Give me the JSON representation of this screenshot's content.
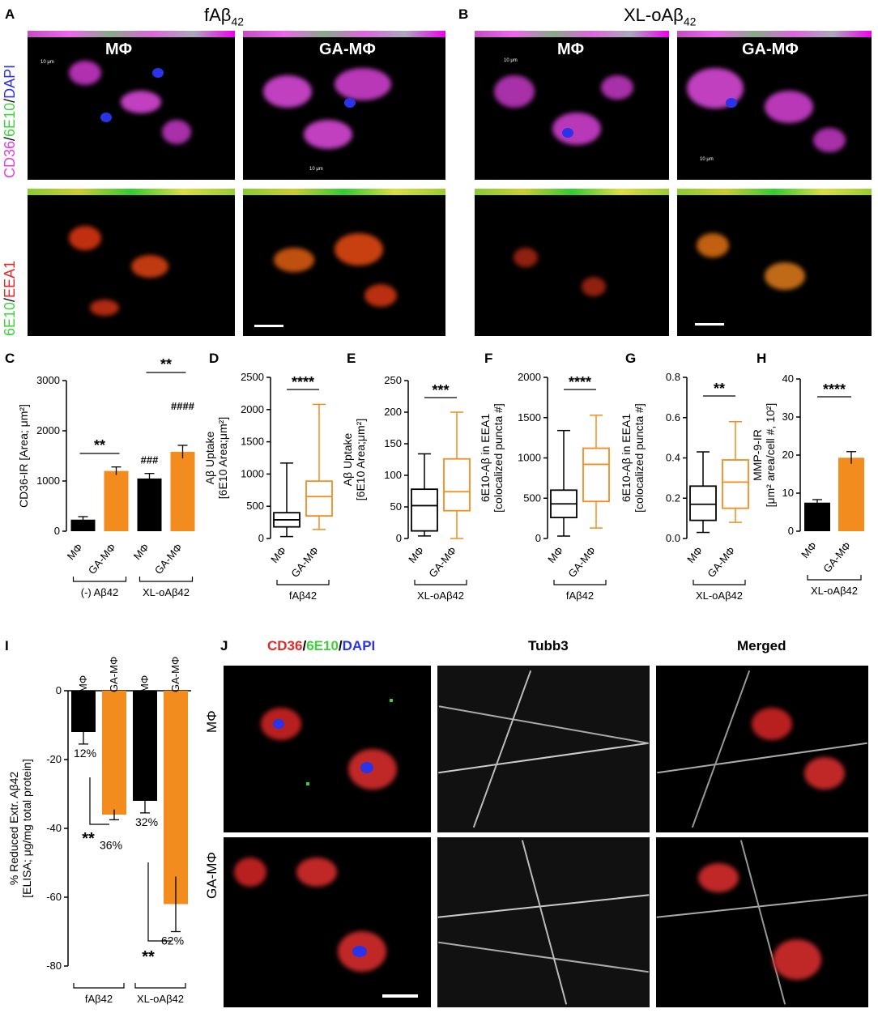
{
  "panel_letters": {
    "A": "A",
    "B": "B",
    "C": "C",
    "D": "D",
    "E": "E",
    "F": "F",
    "G": "G",
    "H": "H",
    "I": "I",
    "J": "J"
  },
  "panelA": {
    "title": "fAβ42",
    "row_label_top": [
      "CD36",
      "/",
      "6E10",
      "/",
      "DAPI"
    ],
    "row_label_bottom": [
      "6E10",
      "/",
      "EEA1"
    ],
    "col_labels": [
      "MΦ",
      "GA-MΦ"
    ],
    "scale_text": [
      "10 μm",
      "10 μm"
    ]
  },
  "panelB": {
    "title": "XL-oAβ42",
    "col_labels": [
      "MΦ",
      "GA-MΦ"
    ],
    "scale_text": [
      "10 μm",
      "10 μm"
    ]
  },
  "colors": {
    "orange": "#F28C1E",
    "black": "#000000",
    "magenta": "#E040E0",
    "green": "#3ED13E",
    "red": "#E52828",
    "blue": "#2B33E8"
  },
  "chart_data": [
    {
      "panel": "C",
      "type": "bar",
      "ylabel": "CD36-IR [Area; μm²]",
      "ylim": [
        0,
        3000
      ],
      "yticks": [
        0,
        1000,
        2000,
        3000
      ],
      "categories": [
        "MΦ",
        "GA-MΦ",
        "MΦ",
        "GA-MΦ"
      ],
      "groups": [
        {
          "label": "(-) Aβ42",
          "span": [
            0,
            1
          ]
        },
        {
          "label": "XL-oAβ42",
          "span": [
            2,
            3
          ]
        }
      ],
      "values": [
        230,
        1200,
        1050,
        1580
      ],
      "errors": [
        60,
        80,
        100,
        130
      ],
      "colors": [
        "#000000",
        "#F28C1E",
        "#000000",
        "#F28C1E"
      ],
      "annotations": [
        {
          "text": "**",
          "between": [
            0,
            1
          ]
        },
        {
          "text": "**",
          "between": [
            2,
            3
          ]
        },
        {
          "text": "###",
          "bar": 2
        },
        {
          "text": "####",
          "bar": 3
        }
      ]
    },
    {
      "panel": "D",
      "type": "box",
      "ylabel_lines": [
        "Aβ Uptake",
        "[6E10 Area;μm²]"
      ],
      "ylim": [
        0,
        2500
      ],
      "yticks": [
        0,
        500,
        1000,
        1500,
        2000,
        2500
      ],
      "categories": [
        "MΦ",
        "GA-MΦ"
      ],
      "group_label": "fAβ42",
      "boxes": [
        {
          "min": 30,
          "q1": 180,
          "median": 290,
          "q3": 400,
          "max": 1170,
          "color": "#000000"
        },
        {
          "min": 140,
          "q1": 350,
          "median": 650,
          "q3": 890,
          "max": 2080,
          "color": "#F28C1E"
        }
      ],
      "significance": "****"
    },
    {
      "panel": "E",
      "type": "box",
      "ylabel_lines": [
        "Aβ Uptake",
        "[6E10 Area;μm²]"
      ],
      "ylim": [
        0,
        250
      ],
      "yticks": [
        0,
        50,
        100,
        150,
        200,
        250
      ],
      "categories": [
        "MΦ",
        "GA-MΦ"
      ],
      "group_label": "XL-oAβ42",
      "boxes": [
        {
          "min": 4,
          "q1": 12,
          "median": 52,
          "q3": 78,
          "max": 134,
          "color": "#000000"
        },
        {
          "min": 0,
          "q1": 44,
          "median": 74,
          "q3": 126,
          "max": 200,
          "color": "#F28C1E"
        }
      ],
      "significance": "***"
    },
    {
      "panel": "F",
      "type": "box",
      "ylabel_lines": [
        "6E10-Aβ in EEA1",
        "[colocalized puncta #]"
      ],
      "ylim": [
        0,
        2000
      ],
      "yticks": [
        0,
        500,
        1000,
        1500,
        2000
      ],
      "categories": [
        "MΦ",
        "GA-MΦ"
      ],
      "group_label": "fAβ42",
      "boxes": [
        {
          "min": 30,
          "q1": 260,
          "median": 430,
          "q3": 600,
          "max": 1340,
          "color": "#000000"
        },
        {
          "min": 130,
          "q1": 460,
          "median": 920,
          "q3": 1120,
          "max": 1530,
          "color": "#F28C1E"
        }
      ],
      "significance": "****"
    },
    {
      "panel": "G",
      "type": "box",
      "ylabel_lines": [
        "6E10-Aβ in EEA1",
        "[colocalized puncta #]"
      ],
      "ylim": [
        0,
        0.8
      ],
      "yticks": [
        0.0,
        0.2,
        0.4,
        0.6,
        0.8
      ],
      "categories": [
        "MΦ",
        "GA-MΦ"
      ],
      "group_label": "XL-oAβ42",
      "boxes": [
        {
          "min": 0.03,
          "q1": 0.09,
          "median": 0.17,
          "q3": 0.26,
          "max": 0.43,
          "color": "#000000"
        },
        {
          "min": 0.08,
          "q1": 0.15,
          "median": 0.28,
          "q3": 0.39,
          "max": 0.58,
          "color": "#F28C1E"
        }
      ],
      "significance": "**"
    },
    {
      "panel": "H",
      "type": "bar",
      "ylabel_lines": [
        "MMP-9-IR",
        "[μm² area/cell #, 10²]"
      ],
      "ylim": [
        0,
        40
      ],
      "yticks": [
        0,
        10,
        20,
        30,
        40
      ],
      "categories": [
        "MΦ",
        "GA-MΦ"
      ],
      "group_label": "XL-oAβ42",
      "values": [
        7.5,
        19.3
      ],
      "errors": [
        0.8,
        1.6
      ],
      "colors": [
        "#000000",
        "#F28C1E"
      ],
      "significance": "****"
    },
    {
      "panel": "I",
      "type": "bar",
      "ylabel_lines": [
        "% Reduced Extr. Aβ42",
        "[ELISA; μg/mg total protein]"
      ],
      "ylim": [
        -80,
        0
      ],
      "yticks": [
        0,
        -20,
        -40,
        -60,
        -80
      ],
      "categories": [
        "MΦ",
        "GA-MΦ",
        "MΦ",
        "GA-MΦ"
      ],
      "groups": [
        {
          "label": "fAβ42",
          "span": [
            0,
            1
          ]
        },
        {
          "label": "XL-oAβ42",
          "span": [
            2,
            3
          ]
        }
      ],
      "values": [
        -12,
        -36,
        -32,
        -62
      ],
      "errors": [
        3.5,
        1.5,
        3.5,
        8
      ],
      "colors": [
        "#000000",
        "#F28C1E",
        "#000000",
        "#F28C1E"
      ],
      "value_labels": [
        "12%",
        "36%",
        "32%",
        "62%"
      ],
      "significance": [
        "**",
        "**"
      ]
    }
  ],
  "panelJ": {
    "col_headers": [
      [
        "CD36",
        "/",
        "6E10",
        "/",
        "DAPI"
      ],
      "Tubb3",
      "Merged"
    ],
    "row_labels": [
      "MΦ",
      "GA-MΦ"
    ]
  }
}
